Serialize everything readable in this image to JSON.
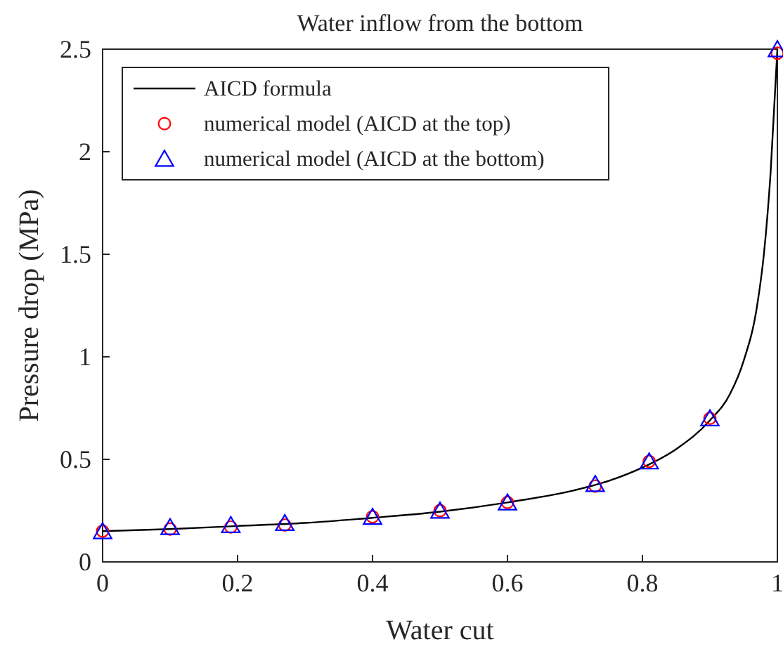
{
  "chart_data": {
    "type": "line",
    "title": "Water inflow from the bottom",
    "xlabel": "Water cut",
    "ylabel": "Pressure drop (MPa)",
    "xlim": [
      0,
      1
    ],
    "ylim": [
      0,
      2.5
    ],
    "xticks": [
      0,
      0.2,
      0.4,
      0.6,
      0.8,
      1
    ],
    "yticks": [
      0,
      0.5,
      1,
      1.5,
      2,
      2.5
    ],
    "grid": false,
    "legend": "top left",
    "series": [
      {
        "name": "AICD formula",
        "color": "#000000",
        "marker": "none",
        "x": [
          0,
          0.1,
          0.2,
          0.3,
          0.4,
          0.5,
          0.6,
          0.7,
          0.75,
          0.8,
          0.85,
          0.9,
          0.93,
          0.95,
          0.97,
          0.98,
          0.99,
          1
        ],
        "values": [
          0.15,
          0.16,
          0.175,
          0.19,
          0.215,
          0.245,
          0.29,
          0.35,
          0.395,
          0.46,
          0.55,
          0.69,
          0.82,
          0.98,
          1.25,
          1.5,
          1.9,
          2.5
        ]
      },
      {
        "name": "numerical model (AICD at the top)",
        "type": "scatter",
        "color": "#ff0000",
        "marker": "circle",
        "x": [
          0,
          0.1,
          0.19,
          0.27,
          0.4,
          0.5,
          0.6,
          0.73,
          0.81,
          0.9,
          1
        ],
        "values": [
          0.15,
          0.16,
          0.17,
          0.18,
          0.22,
          0.25,
          0.29,
          0.37,
          0.49,
          0.7,
          2.48
        ]
      },
      {
        "name": "numerical model (AICD at the bottom)",
        "type": "scatter",
        "color": "#0000ff",
        "marker": "triangle",
        "x": [
          0,
          0.1,
          0.19,
          0.27,
          0.4,
          0.5,
          0.6,
          0.73,
          0.81,
          0.9,
          1
        ],
        "values": [
          0.15,
          0.17,
          0.18,
          0.19,
          0.22,
          0.25,
          0.29,
          0.38,
          0.49,
          0.7,
          2.5
        ]
      }
    ]
  }
}
